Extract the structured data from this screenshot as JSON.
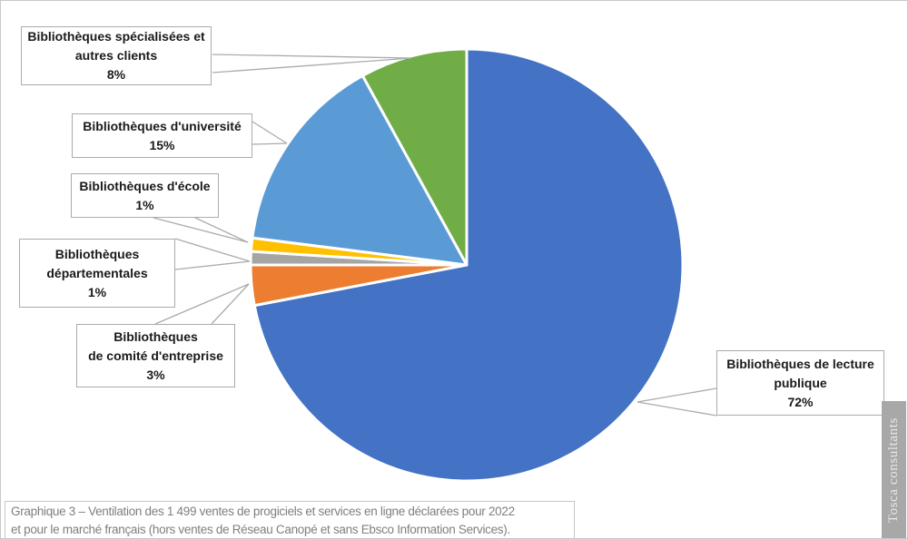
{
  "chart_data": {
    "type": "pie",
    "title": "",
    "start_angle_deg": 0,
    "direction": "clockwise",
    "legend": "none",
    "slices": [
      {
        "label": "Bibliothèques de lecture publique",
        "value": 72,
        "color": "#4472C4"
      },
      {
        "label": "Bibliothèques de comité d'entreprise",
        "value": 3,
        "color": "#ED7D31"
      },
      {
        "label": "Bibliothèques départementales",
        "value": 1,
        "color": "#A5A5A5"
      },
      {
        "label": "Bibliothèques d'école",
        "value": 1,
        "color": "#FFC000"
      },
      {
        "label": "Bibliothèques d'université",
        "value": 15,
        "color": "#5B9BD5"
      },
      {
        "label": "Bibliothèques spécialisées et autres clients",
        "value": 8,
        "color": "#70AD47"
      }
    ]
  },
  "callouts": [
    {
      "name": "specialisees",
      "lines": [
        "Bibliothèques spécialisées et",
        "autres clients",
        "8%"
      ]
    },
    {
      "name": "universite",
      "lines": [
        "Bibliothèques d'université",
        "15%"
      ]
    },
    {
      "name": "ecole",
      "lines": [
        "Bibliothèques d'école",
        "1%"
      ]
    },
    {
      "name": "departementales",
      "lines": [
        "Bibliothèques",
        "départementales",
        "1%"
      ]
    },
    {
      "name": "comite",
      "lines": [
        "Bibliothèques",
        "de comité d'entreprise",
        "3%"
      ]
    },
    {
      "name": "lecture",
      "lines": [
        "Bibliothèques de lecture",
        "publique",
        "72%"
      ]
    }
  ],
  "caption": {
    "line1": "Graphique 3 – Ventilation des 1 499 ventes de progiciels et services en ligne déclarées pour 2022",
    "line2": "et pour le marché français (hors ventes de Réseau Canopé et sans Ebsco Information Services)."
  },
  "watermark": {
    "text": "Tosca consultants"
  },
  "colors": {
    "leader_line": "#ABABAB",
    "slice_border": "#FFFFFF",
    "caption_text": "#7F7F7F",
    "watermark_bg": "#A8A8A8"
  }
}
